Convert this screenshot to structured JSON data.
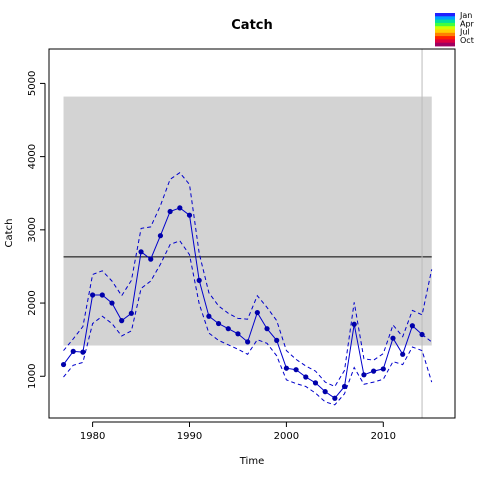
{
  "chart_data": {
    "type": "line",
    "title": "Catch",
    "xlabel": "Time",
    "ylabel": "Catch",
    "xlim": [
      1975.5,
      2017.4
    ],
    "ylim": [
      430,
      5470
    ],
    "xticks": [
      1980,
      1990,
      2000,
      2010
    ],
    "yticks": [
      1000,
      2000,
      3000,
      4000,
      5000
    ],
    "colors": {
      "series": "#0000cc",
      "band": "#d3d3d3",
      "mean_line": "#000000",
      "vline": "#bbbbbb",
      "axis": "#000000"
    },
    "band": {
      "x": [
        1977,
        2015
      ],
      "y": [
        1420,
        4820
      ]
    },
    "mean_line_y": 2630,
    "vertical_line_x": 2014,
    "series": [
      {
        "role": "estimate",
        "x": [
          1977,
          1978,
          1979,
          1980,
          1981,
          1982,
          1983,
          1984,
          1985,
          1986,
          1987,
          1988,
          1989,
          1990,
          1991,
          1992,
          1993,
          1994,
          1995,
          1996,
          1997,
          1998,
          1999,
          2000,
          2001,
          2002,
          2003,
          2004,
          2005,
          2006,
          2007,
          2008,
          2009,
          2010,
          2011,
          2012,
          2013,
          2014
        ],
        "y": [
          1160,
          1340,
          1330,
          2110,
          2110,
          2000,
          1760,
          1860,
          2700,
          2600,
          2920,
          3250,
          3300,
          3200,
          2310,
          1820,
          1720,
          1650,
          1580,
          1470,
          1870,
          1650,
          1490,
          1110,
          1090,
          990,
          910,
          790,
          700,
          860,
          1710,
          1020,
          1070,
          1100,
          1520,
          1300,
          1690,
          1570
        ]
      },
      {
        "role": "upper",
        "x": [
          1977,
          1978,
          1979,
          1980,
          1981,
          1982,
          1983,
          1984,
          1985,
          1986,
          1987,
          1988,
          1989,
          1990,
          1991,
          1992,
          1993,
          1994,
          1995,
          1996,
          1997,
          1998,
          1999,
          2000,
          2001,
          2002,
          2003,
          2004,
          2005,
          2006,
          2007,
          2008,
          2009,
          2010,
          2011,
          2012,
          2013,
          2014,
          2015
        ],
        "y": [
          1350,
          1510,
          1680,
          2390,
          2440,
          2300,
          2100,
          2310,
          3020,
          3040,
          3330,
          3690,
          3780,
          3620,
          2680,
          2140,
          1960,
          1860,
          1790,
          1780,
          2100,
          1940,
          1760,
          1350,
          1230,
          1140,
          1070,
          920,
          860,
          1080,
          2010,
          1240,
          1220,
          1310,
          1700,
          1540,
          1900,
          1840,
          2460
        ]
      },
      {
        "role": "lower",
        "x": [
          1977,
          1978,
          1979,
          1980,
          1981,
          1982,
          1983,
          1984,
          1985,
          1986,
          1987,
          1988,
          1989,
          1990,
          1991,
          1992,
          1993,
          1994,
          1995,
          1996,
          1997,
          1998,
          1999,
          2000,
          2001,
          2002,
          2003,
          2004,
          2005,
          2006,
          2007,
          2008,
          2009,
          2010,
          2011,
          2012,
          2013,
          2014,
          2015
        ],
        "y": [
          990,
          1150,
          1190,
          1720,
          1820,
          1720,
          1550,
          1620,
          2200,
          2300,
          2530,
          2800,
          2850,
          2660,
          1990,
          1590,
          1490,
          1430,
          1370,
          1300,
          1500,
          1450,
          1280,
          950,
          900,
          860,
          770,
          650,
          610,
          760,
          1120,
          890,
          920,
          960,
          1200,
          1160,
          1400,
          1350,
          920
        ]
      },
      {
        "role": "estimate-tail",
        "x": [
          2014,
          2015
        ],
        "y": [
          1570,
          1470
        ]
      }
    ],
    "legend": {
      "position": "top-right",
      "labels": [
        "Jan",
        "Apr",
        "Jul",
        "Oct"
      ],
      "colors": [
        "#2020ff",
        "#00a0ff",
        "#00e0a0",
        "#40ff40",
        "#d0ff00",
        "#ffd000",
        "#ff8000",
        "#ff2000",
        "#e00040",
        "#a00060"
      ]
    }
  }
}
